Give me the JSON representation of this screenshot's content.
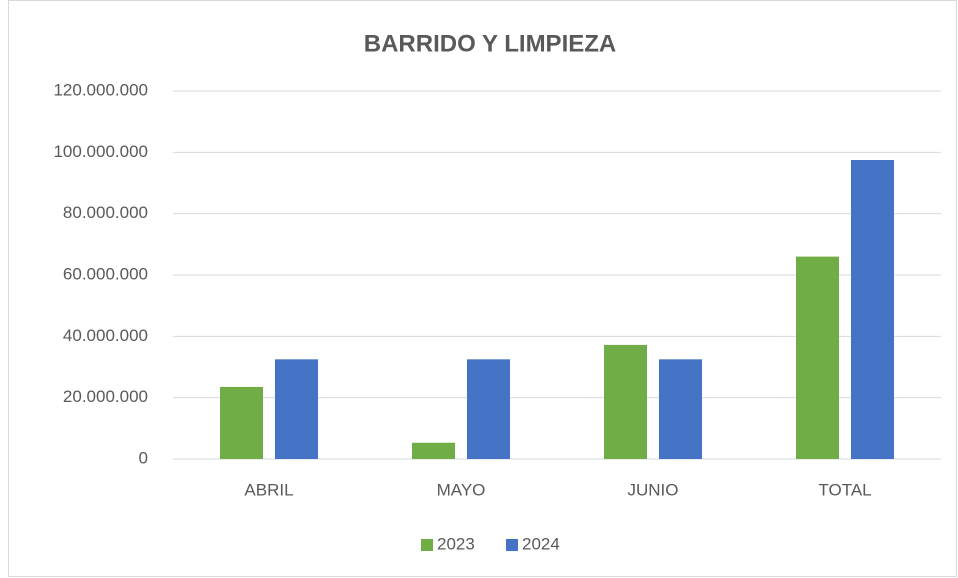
{
  "chart_data": {
    "type": "bar",
    "title": "BARRIDO Y LIMPIEZA",
    "categories": [
      "ABRIL",
      "MAYO",
      "JUNIO",
      "TOTAL"
    ],
    "series": [
      {
        "name": "2023",
        "color": "#70ad47",
        "values": [
          23500000,
          5300000,
          37200000,
          66000000
        ]
      },
      {
        "name": "2024",
        "color": "#4472c4",
        "values": [
          32500000,
          32500000,
          32500000,
          97500000
        ]
      }
    ],
    "ylim": [
      0,
      120000000
    ],
    "yticks": [
      0,
      {
        "value": 20000000,
        "label": "20.000.000"
      },
      {
        "value": 40000000,
        "label": "40.000.000"
      },
      {
        "value": 60000000,
        "label": "60.000.000"
      },
      {
        "value": 80000000,
        "label": "80.000.000"
      },
      {
        "value": 100000000,
        "label": "100.000.000"
      },
      {
        "value": 120000000,
        "label": "120.000.000"
      }
    ],
    "grid": true,
    "legend": "bottom"
  }
}
